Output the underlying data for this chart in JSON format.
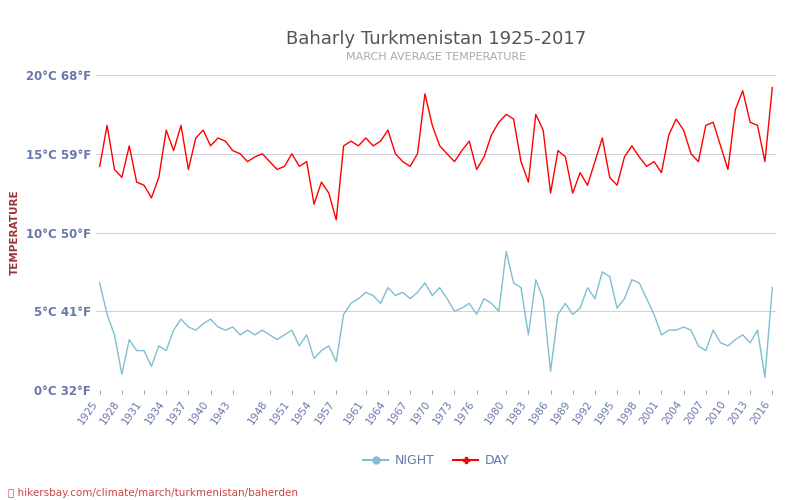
{
  "title": "Baharly Turkmenistan 1925-2017",
  "subtitle": "MARCH AVERAGE TEMPERATURE",
  "ylabel": "TEMPERATURE",
  "xlabel_url": "hikersbay.com/climate/march/turkmenistan/baherden",
  "ylim": [
    0,
    20
  ],
  "yticks_c": [
    0,
    5,
    10,
    15,
    20
  ],
  "yticks_f": [
    32,
    41,
    50,
    59,
    68
  ],
  "day_color": "#ff0000",
  "night_color": "#7fbfcf",
  "bg_color": "#ffffff",
  "grid_color": "#d0d0d8",
  "title_color": "#555555",
  "subtitle_color": "#aaaaaa",
  "label_color": "#993333",
  "tick_color": "#6677aa",
  "x_tick_years": [
    1925,
    1928,
    1931,
    1934,
    1937,
    1940,
    1943,
    1948,
    1951,
    1954,
    1957,
    1961,
    1964,
    1967,
    1970,
    1973,
    1976,
    1980,
    1983,
    1986,
    1989,
    1992,
    1995,
    1998,
    2001,
    2004,
    2007,
    2010,
    2013,
    2016
  ],
  "day_temps_by_year": {
    "1925": 14.2,
    "1926": 16.8,
    "1927": 14.0,
    "1928": 13.5,
    "1929": 15.5,
    "1930": 13.2,
    "1931": 13.0,
    "1932": 12.2,
    "1933": 13.5,
    "1934": 16.5,
    "1935": 15.2,
    "1936": 16.8,
    "1937": 14.0,
    "1938": 16.0,
    "1939": 16.5,
    "1940": 15.5,
    "1941": 16.0,
    "1942": 15.8,
    "1943": 15.2,
    "1944": 15.0,
    "1945": 14.5,
    "1946": 14.8,
    "1947": 15.0,
    "1948": 14.5,
    "1949": 14.0,
    "1950": 14.2,
    "1951": 15.0,
    "1952": 14.2,
    "1953": 14.5,
    "1954": 11.8,
    "1955": 13.2,
    "1956": 12.5,
    "1957": 10.8,
    "1958": 15.5,
    "1959": 15.8,
    "1960": 15.5,
    "1961": 16.0,
    "1962": 15.5,
    "1963": 15.8,
    "1964": 16.5,
    "1965": 15.0,
    "1966": 14.5,
    "1967": 14.2,
    "1968": 15.0,
    "1969": 18.8,
    "1970": 16.8,
    "1971": 15.5,
    "1972": 15.0,
    "1973": 14.5,
    "1974": 15.2,
    "1975": 15.8,
    "1976": 14.0,
    "1977": 14.8,
    "1978": 16.2,
    "1979": 17.0,
    "1980": 17.5,
    "1981": 17.2,
    "1982": 14.5,
    "1983": 13.2,
    "1984": 17.5,
    "1985": 16.5,
    "1986": 12.5,
    "1987": 15.2,
    "1988": 14.8,
    "1989": 12.5,
    "1990": 13.8,
    "1991": 13.0,
    "1992": 14.5,
    "1993": 16.0,
    "1994": 13.5,
    "1995": 13.0,
    "1996": 14.8,
    "1997": 15.5,
    "1998": 14.8,
    "1999": 14.2,
    "2000": 14.5,
    "2001": 13.8,
    "2002": 16.2,
    "2003": 17.2,
    "2004": 16.5,
    "2005": 15.0,
    "2006": 14.5,
    "2007": 16.8,
    "2008": 17.0,
    "2009": 15.5,
    "2010": 14.0,
    "2011": 17.8,
    "2012": 19.0,
    "2013": 17.0,
    "2014": 16.8,
    "2015": 14.5,
    "2016": 19.2
  },
  "night_temps_by_year": {
    "1925": 6.8,
    "1926": 4.8,
    "1927": 3.5,
    "1928": 1.0,
    "1929": 3.2,
    "1930": 2.5,
    "1931": 2.5,
    "1932": 1.5,
    "1933": 2.8,
    "1934": 2.5,
    "1935": 3.8,
    "1936": 4.5,
    "1937": 4.0,
    "1938": 3.8,
    "1939": 4.2,
    "1940": 4.5,
    "1941": 4.0,
    "1942": 3.8,
    "1943": 4.0,
    "1944": 3.5,
    "1945": 3.8,
    "1946": 3.5,
    "1947": 3.8,
    "1948": 3.5,
    "1949": 3.2,
    "1950": 3.5,
    "1951": 3.8,
    "1952": 2.8,
    "1953": 3.5,
    "1954": 2.0,
    "1955": 2.5,
    "1956": 2.8,
    "1957": 1.8,
    "1958": 4.8,
    "1959": 5.5,
    "1960": 5.8,
    "1961": 6.2,
    "1962": 6.0,
    "1963": 5.5,
    "1964": 6.5,
    "1965": 6.0,
    "1966": 6.2,
    "1967": 5.8,
    "1968": 6.2,
    "1969": 6.8,
    "1970": 6.0,
    "1971": 6.5,
    "1972": 5.8,
    "1973": 5.0,
    "1974": 5.2,
    "1975": 5.5,
    "1976": 4.8,
    "1977": 5.8,
    "1978": 5.5,
    "1979": 5.0,
    "1980": 8.8,
    "1981": 6.8,
    "1982": 6.5,
    "1983": 3.5,
    "1984": 7.0,
    "1985": 5.8,
    "1986": 1.2,
    "1987": 4.8,
    "1988": 5.5,
    "1989": 4.8,
    "1990": 5.2,
    "1991": 6.5,
    "1992": 5.8,
    "1993": 7.5,
    "1994": 7.2,
    "1995": 5.2,
    "1996": 5.8,
    "1997": 7.0,
    "1998": 6.8,
    "1999": 5.8,
    "2000": 4.8,
    "2001": 3.5,
    "2002": 3.8,
    "2003": 3.8,
    "2004": 4.0,
    "2005": 3.8,
    "2006": 2.8,
    "2007": 2.5,
    "2008": 3.8,
    "2009": 3.0,
    "2010": 2.8,
    "2011": 3.2,
    "2012": 3.5,
    "2013": 3.0,
    "2014": 3.8,
    "2015": 0.8,
    "2016": 6.5
  }
}
